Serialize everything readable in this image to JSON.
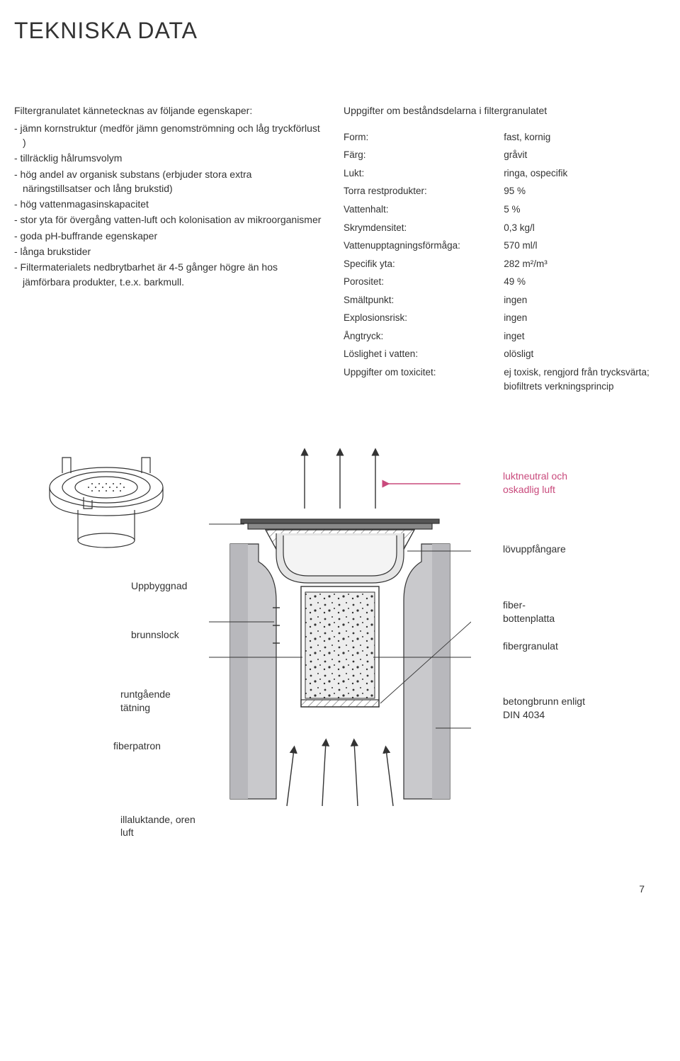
{
  "title": "TEKNISKA DATA",
  "intro": "Filtergranulatet kännetecknas av följande egenskaper:",
  "properties": [
    "- jämn kornstruktur (medför jämn genomströmning och låg tryckförlust )",
    "- tillräcklig hålrumsvolym",
    "- hög andel av organisk substans (erbjuder stora extra näringstillsatser och lång brukstid)",
    "- hög vattenmagasinskapacitet",
    "- stor yta för övergång vatten-luft och kolonisation av mikroorganismer",
    "- goda pH-buffrande egenskaper",
    "- långa brukstider",
    "- Filtermaterialets nedbrytbarhet är 4-5 gånger högre än hos jämförbara produkter, t.e.x. barkmull."
  ],
  "specs_title": "Uppgifter om beståndsdelarna i filtergranulatet",
  "specs": [
    {
      "label": "Form:",
      "value": "fast, kornig"
    },
    {
      "label": "Färg:",
      "value": "gråvit"
    },
    {
      "label": "Lukt:",
      "value": "ringa, ospecifik"
    },
    {
      "label": "Torra restprodukter:",
      "value": "95 %"
    },
    {
      "label": "Vattenhalt:",
      "value": "5 %"
    },
    {
      "label": "Skrymdensitet:",
      "value": "0,3 kg/l"
    },
    {
      "label": "Vattenupptagningsförmåga:",
      "value": "570 ml/l"
    },
    {
      "label": "Specifik yta:",
      "value": "282 m²/m³"
    },
    {
      "label": "Porositet:",
      "value": "49 %"
    },
    {
      "label": "Smältpunkt:",
      "value": "ingen"
    },
    {
      "label": "Explosionsrisk:",
      "value": "ingen"
    },
    {
      "label": "Ångtryck:",
      "value": "inget"
    },
    {
      "label": "Löslighet i vatten:",
      "value": "olösligt"
    },
    {
      "label": "Uppgifter om toxicitet:",
      "value": "ej toxisk, rengjord från trycksvärta; biofiltrets verkningsprincip"
    }
  ],
  "diagram": {
    "heading": "Uppbyggnad",
    "left": {
      "brunnslock": "brunnslock",
      "runtgaende": "runtgående tätning",
      "fiberpatron": "fiberpatron",
      "illaluktande": "illaluktande, oren luft"
    },
    "right": {
      "luktneutral": "luktneutral och oskadlig luft",
      "lovuppfangare": "lövuppfångare",
      "fiberbottenplatta": "fiber-bottenplatta",
      "fibergranulat": "fibergranulat",
      "betongbrunn": "betongbrunn enligt DIN 4034"
    },
    "colors": {
      "accent": "#c94a7c",
      "concrete": "#c9c9cc",
      "concrete_dark": "#a8a8ac",
      "granulate": "#e8e8e8",
      "line": "#333333",
      "hatch": "#666666"
    }
  },
  "page_number": "7"
}
